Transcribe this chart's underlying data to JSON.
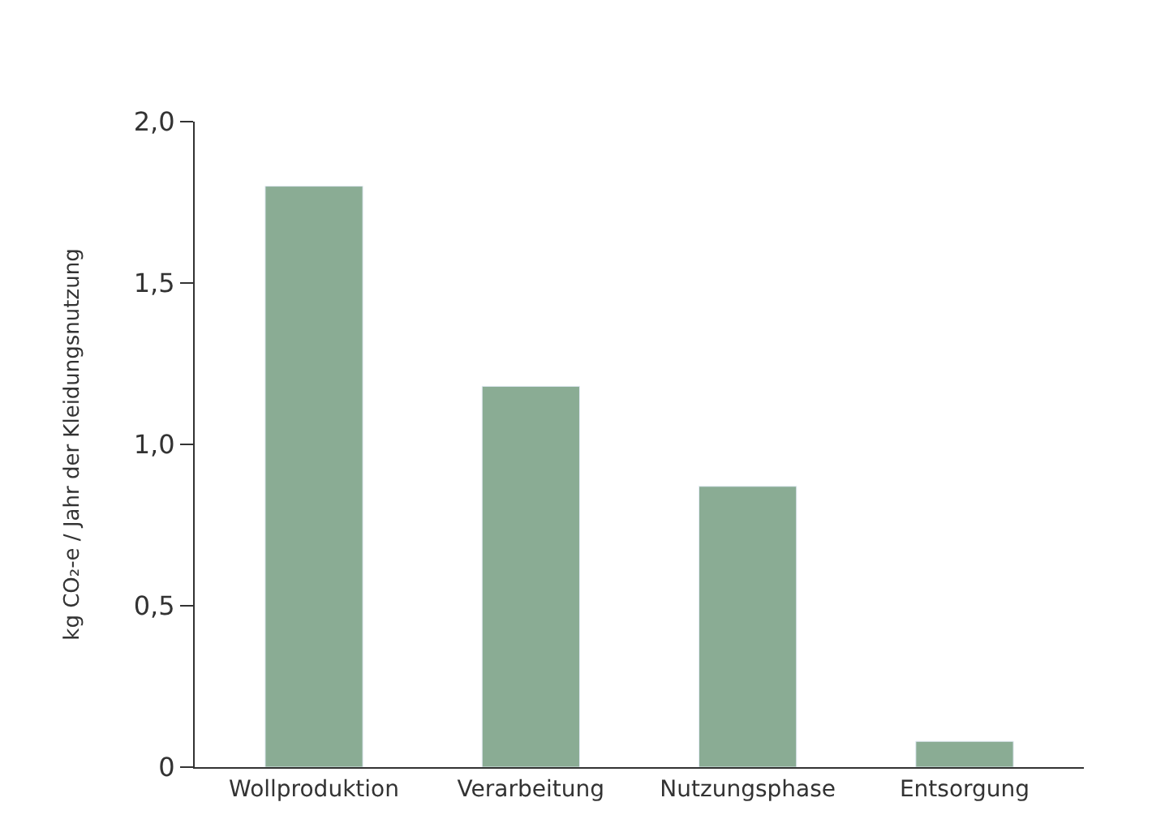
{
  "chart_data": {
    "type": "bar",
    "ylabel": "kg CO₂-e / Jahr der Kleidungsnutzung",
    "categories": [
      "Wollproduktion",
      "Verarbeitung",
      "Nutzungsphase",
      "Entsorgung"
    ],
    "values": [
      1.8,
      1.18,
      0.87,
      0.08
    ],
    "color": "#8aac94",
    "yticks": [
      0,
      {
        "value": 0.5,
        "label": "0,5"
      },
      {
        "value": 1.0,
        "label": "1,0"
      },
      {
        "value": 1.5,
        "label": "1,5"
      },
      {
        "value": 2.0,
        "label": "2,0"
      }
    ],
    "ylim": [
      0,
      2.0
    ]
  }
}
